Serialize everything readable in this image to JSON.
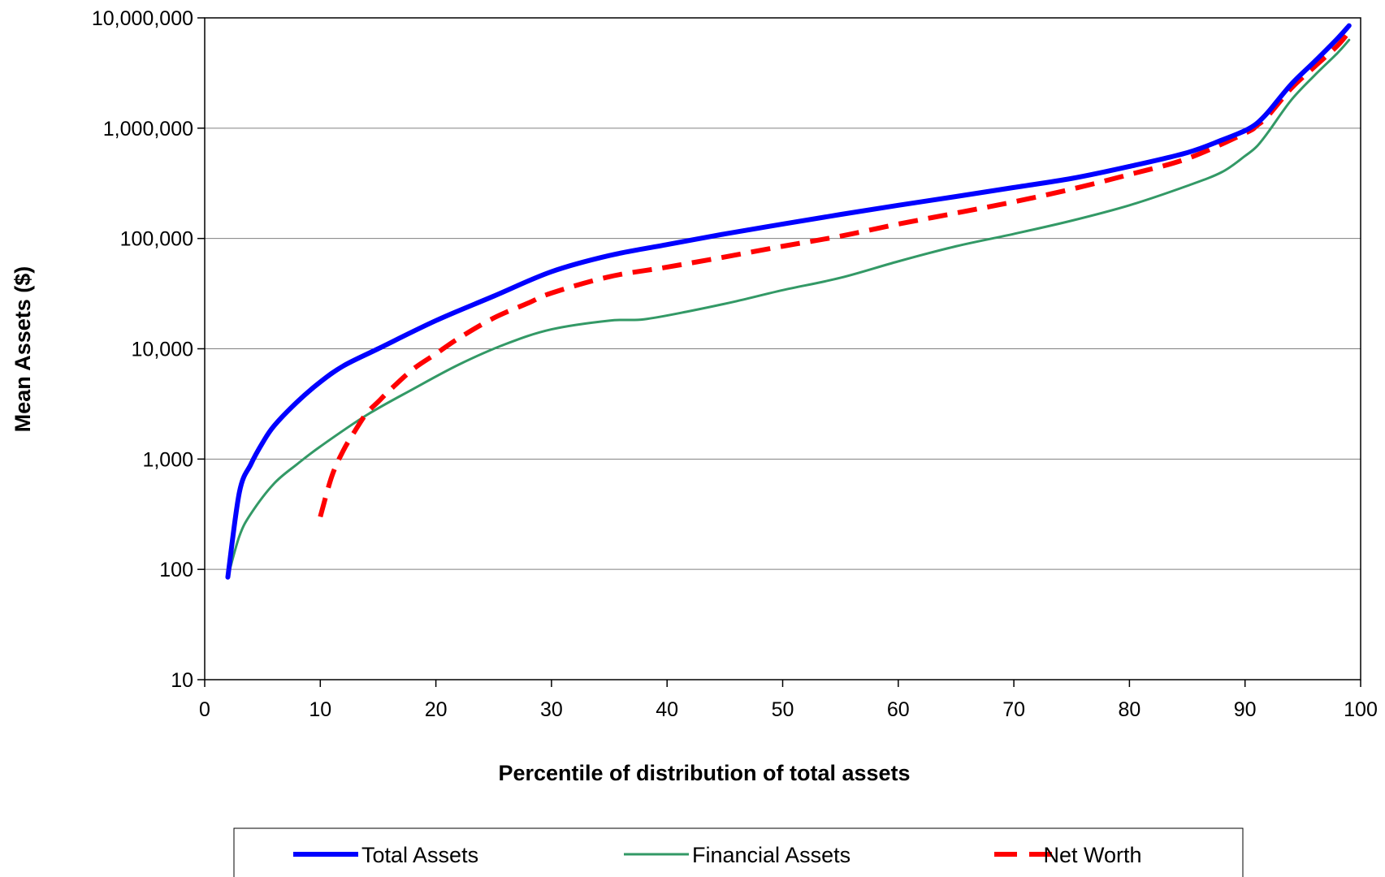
{
  "chart_data": {
    "type": "line",
    "title": "",
    "xlabel": "Percentile of distribution of total assets",
    "ylabel": "Mean Assets ($)",
    "xlim": [
      0,
      100
    ],
    "ylim": [
      10,
      10000000
    ],
    "yscale": "log",
    "xticks": [
      0,
      10,
      20,
      30,
      40,
      50,
      60,
      70,
      80,
      90,
      100
    ],
    "xtick_labels": [
      "0",
      "10",
      "20",
      "30",
      "40",
      "50",
      "60",
      "70",
      "80",
      "90",
      "100"
    ],
    "yticks": [
      10,
      100,
      1000,
      10000,
      100000,
      1000000,
      10000000
    ],
    "ytick_labels": [
      "10",
      "100",
      "1,000",
      "10,000",
      "100,000",
      "1,000,000",
      "10,000,000"
    ],
    "grid": "horizontal major",
    "legend_position": "bottom",
    "series": [
      {
        "name": "Total Assets",
        "color": "#0000ff",
        "style": "solid-thick",
        "x": [
          2,
          3,
          4,
          5,
          6,
          8,
          10,
          12,
          15,
          20,
          25,
          30,
          35,
          40,
          45,
          50,
          55,
          60,
          65,
          70,
          75,
          80,
          85,
          88,
          90,
          91,
          92,
          94,
          96,
          98,
          99
        ],
        "y": [
          85,
          500,
          900,
          1400,
          2000,
          3300,
          5000,
          7000,
          10000,
          18000,
          30000,
          50000,
          70000,
          88000,
          110000,
          135000,
          165000,
          200000,
          240000,
          290000,
          350000,
          450000,
          600000,
          780000,
          950000,
          1100000,
          1400000,
          2500000,
          4000000,
          6500000,
          8500000
        ]
      },
      {
        "name": "Financial Assets",
        "color": "#339966",
        "style": "solid-thin",
        "x": [
          2,
          3,
          4,
          6,
          8,
          10,
          14,
          18,
          22,
          26,
          30,
          35,
          38,
          42,
          46,
          50,
          55,
          60,
          65,
          70,
          75,
          80,
          85,
          88,
          90,
          91,
          92,
          94,
          96,
          98,
          99
        ],
        "y": [
          85,
          200,
          320,
          600,
          900,
          1300,
          2500,
          4300,
          7200,
          11000,
          15000,
          18000,
          18500,
          22000,
          27000,
          34000,
          44000,
          62000,
          85000,
          110000,
          145000,
          200000,
          300000,
          400000,
          560000,
          680000,
          920000,
          1800000,
          3000000,
          4800000,
          6300000
        ]
      },
      {
        "name": "Net Worth",
        "color": "#ff0000",
        "style": "dashed",
        "x": [
          10,
          11,
          12,
          13,
          14,
          15,
          16,
          18,
          20,
          22,
          25,
          28,
          30,
          35,
          40,
          45,
          50,
          55,
          60,
          65,
          70,
          75,
          80,
          85,
          90,
          91,
          92,
          94,
          96,
          98,
          99
        ],
        "y": [
          300,
          700,
          1200,
          1800,
          2600,
          3300,
          4200,
          6500,
          9000,
          12500,
          19000,
          26000,
          32000,
          45000,
          55000,
          68000,
          85000,
          105000,
          135000,
          170000,
          215000,
          280000,
          380000,
          530000,
          900000,
          1050000,
          1300000,
          2300000,
          3600000,
          5600000,
          7500000
        ]
      }
    ]
  }
}
